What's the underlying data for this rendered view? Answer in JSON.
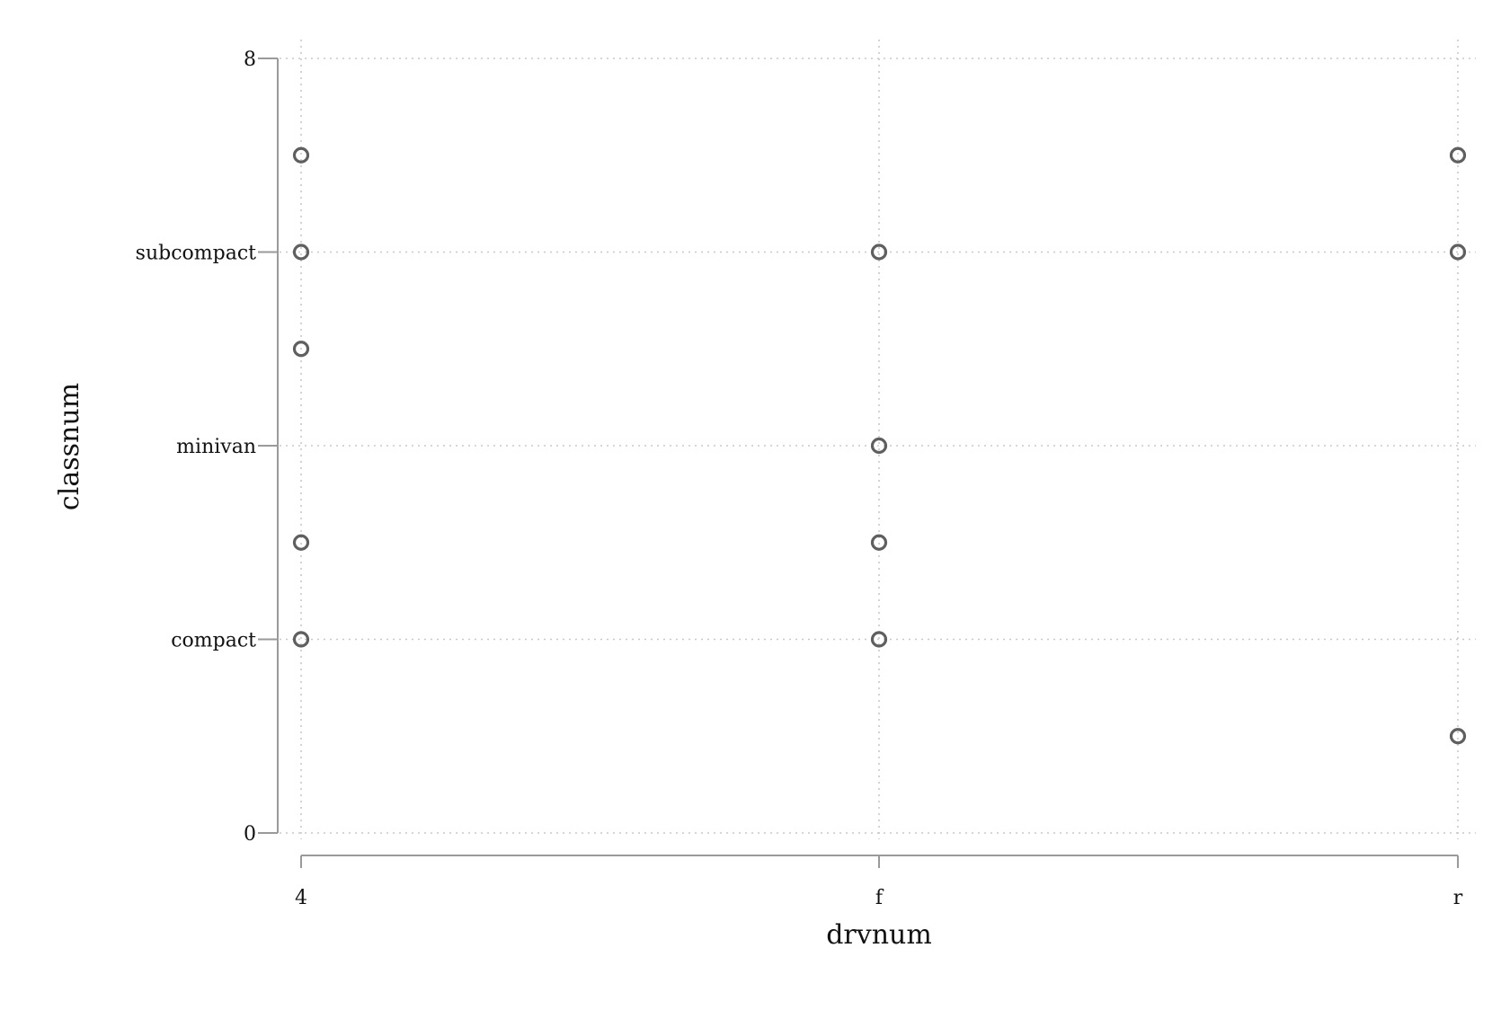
{
  "chart_data": {
    "type": "scatter",
    "title": "",
    "xlabel": "drvnum",
    "ylabel": "classnum",
    "x_categories": [
      "4",
      "f",
      "r"
    ],
    "ylim": [
      0,
      8
    ],
    "y_ticks": [
      {
        "value": 0,
        "label": "0"
      },
      {
        "value": 2,
        "label": "compact"
      },
      {
        "value": 4,
        "label": "minivan"
      },
      {
        "value": 6,
        "label": "subcompact"
      },
      {
        "value": 8,
        "label": "8"
      }
    ],
    "grid": true,
    "legend": "none",
    "points": [
      {
        "x": "4",
        "y": 7
      },
      {
        "x": "4",
        "y": 6
      },
      {
        "x": "4",
        "y": 5
      },
      {
        "x": "4",
        "y": 3
      },
      {
        "x": "4",
        "y": 2
      },
      {
        "x": "f",
        "y": 6
      },
      {
        "x": "f",
        "y": 4
      },
      {
        "x": "f",
        "y": 3
      },
      {
        "x": "f",
        "y": 2
      },
      {
        "x": "r",
        "y": 7
      },
      {
        "x": "r",
        "y": 6
      },
      {
        "x": "r",
        "y": 1
      }
    ],
    "colors": {
      "marker": "#5f5f5f",
      "axis": "#9a9a9a",
      "grid": "#c8c8c8"
    }
  }
}
